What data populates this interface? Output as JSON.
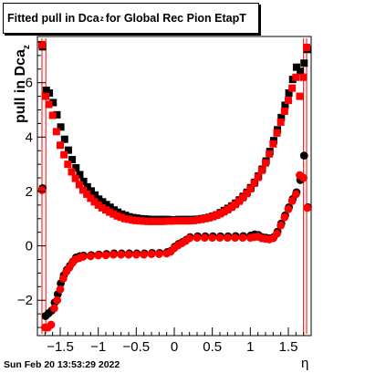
{
  "title": {
    "prefix": "Fitted pull in Dca",
    "sub": "z",
    "suffix": "  for Global Rec Pion EtapT"
  },
  "ylabel": {
    "text": "pull in Dca",
    "sub": "z"
  },
  "xlabel": "η",
  "timestamp": "Sun Feb 20 13:53:29 2022",
  "chart_data": {
    "type": "scatter",
    "x_ticks": [
      "−1.5",
      "−1",
      "−0.5",
      "0",
      "0.5",
      "1",
      "1.5"
    ],
    "x_tick_values": [
      -1.5,
      -1,
      -0.5,
      0,
      0.5,
      1,
      1.5
    ],
    "y_ticks": [
      "−2",
      "0",
      "2",
      "4",
      "6"
    ],
    "y_tick_values": [
      -2,
      0,
      2,
      4,
      6
    ],
    "xlim": [
      -1.8,
      1.8
    ],
    "ylim": [
      -3.3,
      7.7
    ],
    "grid": false,
    "series": [
      {
        "color": "#000000",
        "marker": "square",
        "x": [
          -1.74,
          -1.69,
          -1.65,
          -1.6,
          -1.55,
          -1.5,
          -1.45,
          -1.4,
          -1.35,
          -1.3,
          -1.25,
          -1.2,
          -1.15,
          -1.1,
          -1.05,
          -1.0,
          -0.95,
          -0.9,
          -0.85,
          -0.8,
          -0.75,
          -0.7,
          -0.65,
          -0.6,
          -0.55,
          -0.5,
          -0.45,
          -0.4,
          -0.35,
          -0.3,
          -0.25,
          -0.2,
          -0.15,
          -0.1,
          -0.05,
          0.0,
          0.05,
          0.1,
          0.15,
          0.2,
          0.25,
          0.3,
          0.35,
          0.4,
          0.45,
          0.5,
          0.55,
          0.6,
          0.65,
          0.7,
          0.75,
          0.8,
          0.85,
          0.9,
          0.95,
          1.0,
          1.05,
          1.1,
          1.15,
          1.2,
          1.25,
          1.3,
          1.35,
          1.4,
          1.45,
          1.5,
          1.55,
          1.6,
          1.65,
          1.7,
          1.74
        ],
        "y": [
          7.3,
          5.7,
          5.6,
          5.25,
          4.8,
          4.35,
          3.9,
          3.5,
          3.15,
          2.85,
          2.6,
          2.35,
          2.15,
          2.0,
          1.85,
          1.7,
          1.6,
          1.5,
          1.4,
          1.3,
          1.22,
          1.15,
          1.1,
          1.05,
          1.02,
          1.0,
          0.98,
          0.97,
          0.96,
          0.95,
          0.95,
          0.95,
          0.95,
          0.95,
          0.94,
          0.94,
          0.95,
          0.95,
          0.95,
          0.95,
          0.95,
          0.96,
          0.98,
          1.0,
          1.03,
          1.07,
          1.12,
          1.2,
          1.28,
          1.36,
          1.45,
          1.55,
          1.67,
          1.8,
          1.95,
          2.12,
          2.32,
          2.55,
          2.8,
          3.1,
          3.45,
          3.85,
          4.25,
          4.7,
          5.15,
          5.6,
          6.1,
          6.55,
          6.4,
          6.7,
          7.2
        ]
      },
      {
        "color": "#ff0000",
        "marker": "square",
        "x": [
          -1.74,
          -1.69,
          -1.65,
          -1.6,
          -1.55,
          -1.5,
          -1.45,
          -1.4,
          -1.35,
          -1.3,
          -1.25,
          -1.2,
          -1.15,
          -1.1,
          -1.05,
          -1.0,
          -0.95,
          -0.9,
          -0.85,
          -0.8,
          -0.75,
          -0.7,
          -0.65,
          -0.6,
          -0.55,
          -0.5,
          -0.45,
          -0.4,
          -0.35,
          -0.3,
          -0.25,
          -0.2,
          -0.15,
          -0.1,
          -0.05,
          0.0,
          0.05,
          0.1,
          0.15,
          0.2,
          0.25,
          0.3,
          0.35,
          0.4,
          0.45,
          0.5,
          0.55,
          0.6,
          0.65,
          0.7,
          0.75,
          0.8,
          0.85,
          0.9,
          0.95,
          1.0,
          1.05,
          1.1,
          1.15,
          1.2,
          1.25,
          1.3,
          1.35,
          1.4,
          1.45,
          1.5,
          1.55,
          1.6,
          1.65,
          1.7,
          1.74
        ],
        "y": [
          7.4,
          5.5,
          5.2,
          4.8,
          4.2,
          3.7,
          3.35,
          3.0,
          2.72,
          2.48,
          2.25,
          2.05,
          1.9,
          1.75,
          1.62,
          1.5,
          1.4,
          1.32,
          1.24,
          1.17,
          1.1,
          1.05,
          1.0,
          0.98,
          0.95,
          0.93,
          0.92,
          0.91,
          0.9,
          0.9,
          0.9,
          0.9,
          0.9,
          0.91,
          0.91,
          0.92,
          0.92,
          0.92,
          0.92,
          0.92,
          0.93,
          0.95,
          0.97,
          1.0,
          1.03,
          1.07,
          1.12,
          1.18,
          1.25,
          1.33,
          1.42,
          1.52,
          1.64,
          1.77,
          1.92,
          2.1,
          2.3,
          2.52,
          2.78,
          3.05,
          3.38,
          3.75,
          4.15,
          4.55,
          4.95,
          5.35,
          5.8,
          6.2,
          5.5,
          6.2,
          7.3
        ]
      },
      {
        "color": "#000000",
        "marker": "circle",
        "x": [
          -1.74,
          -1.7,
          -1.66,
          -1.62,
          -1.58,
          -1.54,
          -1.5,
          -1.46,
          -1.42,
          -1.38,
          -1.34,
          -1.3,
          -1.25,
          -1.2,
          -1.1,
          -1.0,
          -0.9,
          -0.8,
          -0.7,
          -0.6,
          -0.5,
          -0.4,
          -0.3,
          -0.2,
          -0.1,
          -0.05,
          0.0,
          0.05,
          0.1,
          0.15,
          0.2,
          0.3,
          0.4,
          0.5,
          0.6,
          0.7,
          0.8,
          0.9,
          1.0,
          1.05,
          1.1,
          1.15,
          1.2,
          1.25,
          1.3,
          1.35,
          1.4,
          1.45,
          1.5,
          1.55,
          1.6,
          1.65,
          1.7,
          1.75
        ],
        "y": [
          2.1,
          -2.6,
          -2.5,
          -2.4,
          -2.1,
          -1.8,
          -1.4,
          -1.1,
          -0.9,
          -0.75,
          -0.6,
          -0.45,
          -0.4,
          -0.38,
          -0.36,
          -0.34,
          -0.32,
          -0.3,
          -0.3,
          -0.3,
          -0.3,
          -0.3,
          -0.28,
          -0.28,
          -0.25,
          -0.2,
          -0.05,
          0.05,
          0.12,
          0.2,
          0.3,
          0.33,
          0.33,
          0.33,
          0.33,
          0.33,
          0.34,
          0.34,
          0.36,
          0.4,
          0.38,
          0.3,
          0.28,
          0.26,
          0.3,
          0.5,
          0.8,
          1.1,
          1.4,
          1.7,
          1.95,
          2.4,
          3.3,
          1.4
        ]
      },
      {
        "color": "#ff0000",
        "marker": "circle",
        "x": [
          -1.74,
          -1.7,
          -1.66,
          -1.62,
          -1.58,
          -1.54,
          -1.5,
          -1.46,
          -1.42,
          -1.38,
          -1.34,
          -1.3,
          -1.25,
          -1.2,
          -1.1,
          -1.0,
          -0.9,
          -0.8,
          -0.7,
          -0.6,
          -0.5,
          -0.4,
          -0.3,
          -0.2,
          -0.1,
          -0.05,
          0.0,
          0.05,
          0.1,
          0.15,
          0.2,
          0.3,
          0.4,
          0.5,
          0.6,
          0.7,
          0.8,
          0.9,
          1.0,
          1.05,
          1.1,
          1.15,
          1.2,
          1.25,
          1.3,
          1.35,
          1.4,
          1.45,
          1.5,
          1.55,
          1.6,
          1.65,
          1.7,
          1.75
        ],
        "y": [
          2.05,
          -3.0,
          -3.0,
          -2.9,
          -2.3,
          -2.0,
          -1.6,
          -1.2,
          -0.95,
          -0.8,
          -0.62,
          -0.5,
          -0.45,
          -0.4,
          -0.38,
          -0.35,
          -0.34,
          -0.32,
          -0.32,
          -0.32,
          -0.32,
          -0.32,
          -0.3,
          -0.3,
          -0.28,
          -0.22,
          -0.08,
          0.02,
          0.1,
          0.18,
          0.28,
          0.3,
          0.3,
          0.3,
          0.3,
          0.3,
          0.3,
          0.3,
          0.3,
          0.32,
          0.34,
          0.28,
          0.26,
          0.24,
          0.28,
          0.45,
          0.75,
          1.05,
          1.35,
          1.65,
          1.9,
          2.6,
          2.5,
          1.4
        ]
      }
    ]
  }
}
